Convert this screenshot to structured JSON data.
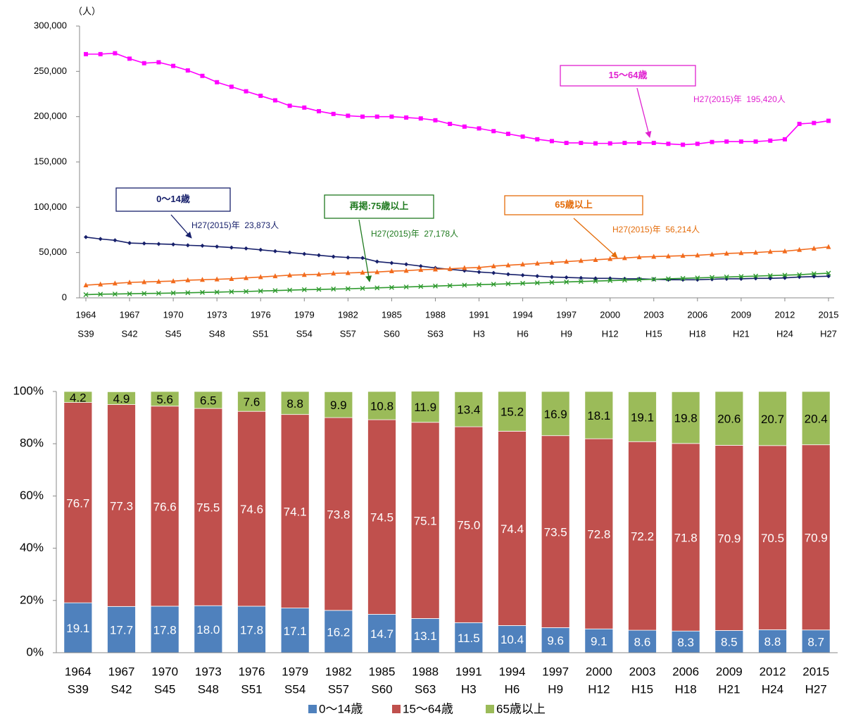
{
  "chart_data": [
    {
      "type": "line",
      "y_axis_label": "（人）",
      "x": [
        1964,
        1965,
        1966,
        1967,
        1968,
        1969,
        1970,
        1971,
        1972,
        1973,
        1974,
        1975,
        1976,
        1977,
        1978,
        1979,
        1980,
        1981,
        1982,
        1983,
        1984,
        1985,
        1986,
        1987,
        1988,
        1989,
        1990,
        1991,
        1992,
        1993,
        1994,
        1995,
        1996,
        1997,
        1998,
        1999,
        2000,
        2001,
        2002,
        2003,
        2004,
        2005,
        2006,
        2007,
        2008,
        2009,
        2010,
        2011,
        2012,
        2013,
        2014,
        2015
      ],
      "xlim": [
        1964,
        2015
      ],
      "xticks": [
        1964,
        1967,
        1970,
        1973,
        1976,
        1979,
        1982,
        1985,
        1988,
        1991,
        1994,
        1997,
        2000,
        2003,
        2006,
        2009,
        2012,
        2015
      ],
      "xtick_sublabels": [
        "S39",
        "S42",
        "S45",
        "S48",
        "S51",
        "S54",
        "S57",
        "S60",
        "S63",
        "H3",
        "H6",
        "H9",
        "H12",
        "H15",
        "H18",
        "H21",
        "H24",
        "H27"
      ],
      "ylim": [
        0,
        300000
      ],
      "yticks": [
        0,
        {
          "value": 50000,
          "label": "50,000"
        },
        {
          "value": 100000,
          "label": "100,000"
        },
        {
          "value": 150000,
          "label": "150,000"
        },
        {
          "value": 200000,
          "label": "200,000"
        },
        {
          "value": 250000,
          "label": "250,000"
        },
        {
          "value": 300000,
          "label": "300,000"
        }
      ],
      "series": [
        {
          "name": "15〜64歳",
          "color": "#ff00ff",
          "marker": "square",
          "values": [
            269000,
            269000,
            270000,
            264000,
            259000,
            260000,
            256000,
            251000,
            245000,
            238000,
            233000,
            228000,
            223000,
            218000,
            212000,
            210000,
            206000,
            203000,
            201000,
            200000,
            200000,
            200000,
            199000,
            198000,
            196000,
            192000,
            189000,
            187000,
            184000,
            181000,
            178000,
            175000,
            173000,
            171000,
            171000,
            170500,
            170500,
            171000,
            171000,
            171000,
            170000,
            169000,
            170000,
            172000,
            172500,
            172500,
            172500,
            173500,
            175000,
            192000,
            193000,
            195420
          ]
        },
        {
          "name": "0〜14歳",
          "color": "#17206b",
          "marker": "diamond",
          "values": [
            67000,
            65000,
            63500,
            60500,
            60000,
            59500,
            59000,
            58000,
            57500,
            56500,
            55500,
            54500,
            53000,
            51500,
            50000,
            48500,
            47000,
            45500,
            44500,
            44000,
            40000,
            38500,
            37000,
            35000,
            33000,
            31500,
            30000,
            28500,
            27500,
            26000,
            25000,
            24000,
            23000,
            22500,
            22000,
            21500,
            21500,
            21000,
            21000,
            20500,
            20000,
            20000,
            20000,
            20500,
            21000,
            21000,
            21500,
            21500,
            22000,
            23000,
            23500,
            23873
          ]
        },
        {
          "name": "65歳以上",
          "color": "#f26b1d",
          "marker": "triangle",
          "values": [
            14000,
            15000,
            16000,
            17000,
            17500,
            18000,
            18500,
            19500,
            20000,
            20500,
            21000,
            22000,
            23000,
            24000,
            25000,
            25500,
            26000,
            27000,
            27500,
            28000,
            28500,
            29500,
            30000,
            31000,
            31500,
            32000,
            33000,
            33500,
            35000,
            36000,
            37000,
            38000,
            39000,
            40000,
            41000,
            42000,
            43000,
            44000,
            45000,
            45500,
            46000,
            46500,
            47000,
            48000,
            49000,
            49500,
            50000,
            51000,
            51500,
            53000,
            54500,
            56214
          ]
        },
        {
          "name": "再掲:75歳以上",
          "color": "#2e9a2e",
          "marker": "x",
          "values": [
            3500,
            4000,
            4200,
            4500,
            4800,
            5000,
            5300,
            5600,
            6000,
            6300,
            6700,
            7000,
            7500,
            8000,
            8500,
            9000,
            9300,
            9700,
            10000,
            10500,
            11000,
            11500,
            12000,
            12500,
            13000,
            13500,
            14000,
            14500,
            15000,
            15500,
            16000,
            16500,
            17000,
            17500,
            18000,
            18500,
            19000,
            19500,
            20000,
            20500,
            21000,
            21500,
            22000,
            22500,
            23000,
            23500,
            24000,
            24500,
            25000,
            25500,
            26500,
            27178
          ]
        }
      ],
      "annotations": [
        {
          "label": "15〜64歳",
          "note": "H27(2015)年  195,420人",
          "color": "#e020d0"
        },
        {
          "label": "0〜14歳",
          "note": "H27(2015)年  23,873人",
          "color": "#17206b"
        },
        {
          "label": "再掲:75歳以上",
          "note": "H27(2015)年  27,178人",
          "color": "#1f7a1f"
        },
        {
          "label": "65歳以上",
          "note": "H27(2015)年  56,214人",
          "color": "#e46c0a"
        }
      ]
    },
    {
      "type": "bar",
      "stacked": true,
      "categories": [
        "1964",
        "1967",
        "1970",
        "1973",
        "1976",
        "1979",
        "1982",
        "1985",
        "1988",
        "1991",
        "1994",
        "1997",
        "2000",
        "2003",
        "2006",
        "2009",
        "2012",
        "2015"
      ],
      "category_sublabels": [
        "S39",
        "S42",
        "S45",
        "S48",
        "S51",
        "S54",
        "S57",
        "S60",
        "S63",
        "H3",
        "H6",
        "H9",
        "H12",
        "H15",
        "H18",
        "H21",
        "H24",
        "H27"
      ],
      "ylim": [
        0,
        100
      ],
      "yticks": [
        {
          "value": 0,
          "label": "0%"
        },
        {
          "value": 20,
          "label": "20%"
        },
        {
          "value": 40,
          "label": "40%"
        },
        {
          "value": 60,
          "label": "60%"
        },
        {
          "value": 80,
          "label": "80%"
        },
        {
          "value": 100,
          "label": "100%"
        }
      ],
      "legend": "bottom",
      "series": [
        {
          "name": "0〜14歳",
          "color": "#4f81bd",
          "label_color": "#ffffff",
          "values": [
            19.1,
            17.7,
            17.8,
            18.0,
            17.8,
            17.1,
            16.2,
            14.7,
            13.1,
            11.5,
            10.4,
            9.6,
            9.1,
            8.6,
            8.3,
            8.5,
            8.8,
            8.7
          ],
          "value_labels": [
            "19.1",
            "17.7",
            "17.8",
            "18.0",
            "17.8",
            "17.1",
            "16.2",
            "14.7",
            "13.1",
            "11.5",
            "10.4",
            "9.6",
            "9.1",
            "8.6",
            "8.3",
            "8.5",
            "8.8",
            "8.7"
          ]
        },
        {
          "name": "15〜64歳",
          "color": "#c0504d",
          "label_color": "#ffffff",
          "values": [
            76.7,
            77.3,
            76.6,
            75.5,
            74.6,
            74.1,
            73.8,
            74.5,
            75.1,
            75.0,
            74.4,
            73.5,
            72.8,
            72.2,
            71.8,
            70.9,
            70.5,
            70.9
          ],
          "value_labels": [
            "76.7",
            "77.3",
            "76.6",
            "75.5",
            "74.6",
            "74.1",
            "73.8",
            "74.5",
            "75.1",
            "75.0",
            "74.4",
            "73.5",
            "72.8",
            "72.2",
            "71.8",
            "70.9",
            "70.5",
            "70.9"
          ]
        },
        {
          "name": "65歳以上",
          "color": "#9bbb59",
          "label_color": "#000000",
          "values": [
            4.2,
            4.9,
            5.6,
            6.5,
            7.6,
            8.8,
            9.9,
            10.8,
            11.9,
            13.4,
            15.2,
            16.9,
            18.1,
            19.1,
            19.8,
            20.6,
            20.7,
            20.4
          ],
          "value_labels": [
            "4.2",
            "4.9",
            "5.6",
            "6.5",
            "7.6",
            "8.8",
            "9.9",
            "10.8",
            "11.9",
            "13.4",
            "15.2",
            "16.9",
            "18.1",
            "19.1",
            "19.8",
            "20.6",
            "20.7",
            "20.4"
          ]
        }
      ]
    }
  ]
}
